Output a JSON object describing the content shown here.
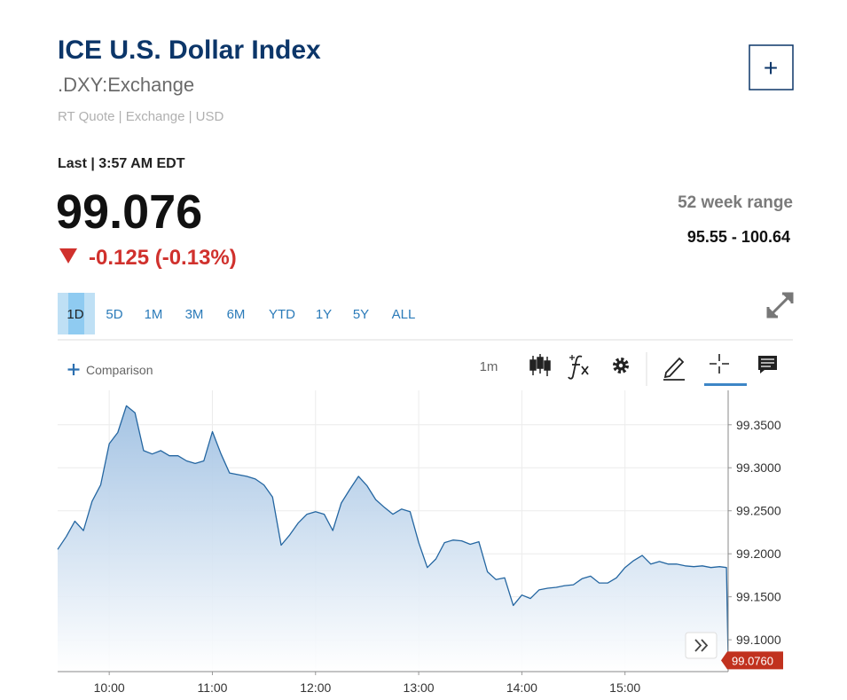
{
  "header": {
    "title": "ICE U.S. Dollar Index",
    "symbol": ".DXY:Exchange",
    "meta": "RT Quote | Exchange | USD",
    "add_button": "+"
  },
  "quote": {
    "last_label": "Last | 3:57 AM EDT",
    "price": "99.076",
    "change": "-0.125 (-0.13%)",
    "range_label": "52 week range",
    "range": "95.55 - 100.64"
  },
  "tabs": {
    "items": [
      "1D",
      "5D",
      "1M",
      "3M",
      "6M",
      "YTD",
      "1Y",
      "5Y",
      "ALL"
    ],
    "active": 0
  },
  "toolbar": {
    "comparison": "Comparison",
    "interval": "1m"
  },
  "chart_data": {
    "type": "area",
    "color": "#2466a1",
    "x": [
      "09:30",
      "09:35",
      "09:40",
      "09:45",
      "09:50",
      "09:55",
      "10:00",
      "10:05",
      "10:10",
      "10:15",
      "10:20",
      "10:25",
      "10:30",
      "10:35",
      "10:40",
      "10:45",
      "10:50",
      "10:55",
      "11:00",
      "11:05",
      "11:10",
      "11:15",
      "11:20",
      "11:25",
      "11:30",
      "11:35",
      "11:40",
      "11:45",
      "11:50",
      "11:55",
      "12:00",
      "12:05",
      "12:10",
      "12:15",
      "12:20",
      "12:25",
      "12:30",
      "12:35",
      "12:40",
      "12:45",
      "12:50",
      "12:55",
      "13:00",
      "13:05",
      "13:10",
      "13:15",
      "13:20",
      "13:25",
      "13:30",
      "13:35",
      "13:40",
      "13:45",
      "13:50",
      "13:55",
      "14:00",
      "14:05",
      "14:10",
      "14:15",
      "14:20",
      "14:25",
      "14:30",
      "14:35",
      "14:40",
      "14:45",
      "14:50",
      "14:55",
      "15:00",
      "15:05",
      "15:10",
      "15:15",
      "15:20",
      "15:25",
      "15:30",
      "15:35",
      "15:40",
      "15:45",
      "15:50",
      "15:55",
      "15:59",
      "16:00"
    ],
    "values": [
      99.205,
      99.22,
      99.238,
      99.227,
      99.261,
      99.28,
      99.328,
      99.341,
      99.372,
      99.364,
      99.32,
      99.316,
      99.32,
      99.314,
      99.314,
      99.308,
      99.305,
      99.308,
      99.342,
      99.316,
      99.294,
      99.292,
      99.29,
      99.287,
      99.28,
      99.266,
      99.21,
      99.222,
      99.236,
      99.246,
      99.249,
      99.246,
      99.227,
      99.259,
      99.275,
      99.29,
      99.279,
      99.263,
      99.254,
      99.246,
      99.252,
      99.249,
      99.213,
      99.184,
      99.194,
      99.213,
      99.216,
      99.215,
      99.211,
      99.214,
      99.179,
      99.17,
      99.172,
      99.14,
      99.152,
      99.148,
      99.158,
      99.16,
      99.161,
      99.163,
      99.164,
      99.171,
      99.174,
      99.166,
      99.166,
      99.172,
      99.184,
      99.192,
      99.198,
      99.188,
      99.191,
      99.188,
      99.188,
      99.186,
      99.185,
      99.186,
      99.184,
      99.185,
      99.184,
      99.076
    ],
    "xlim": [
      "09:30",
      "16:00"
    ],
    "xticks": [
      "10:00",
      "11:00",
      "12:00",
      "13:00",
      "14:00",
      "15:00"
    ],
    "ylim": [
      99.063,
      99.39
    ],
    "yticks": [
      {
        "value": 99.1,
        "label": "99.1000"
      },
      {
        "value": 99.15,
        "label": "99.1500"
      },
      {
        "value": 99.2,
        "label": "99.2000"
      },
      {
        "value": 99.25,
        "label": "99.2500"
      },
      {
        "value": 99.3,
        "label": "99.3000"
      },
      {
        "value": 99.35,
        "label": "99.3500"
      }
    ],
    "last_value": {
      "value": 99.076,
      "label": "99.0760"
    },
    "grid": true
  }
}
